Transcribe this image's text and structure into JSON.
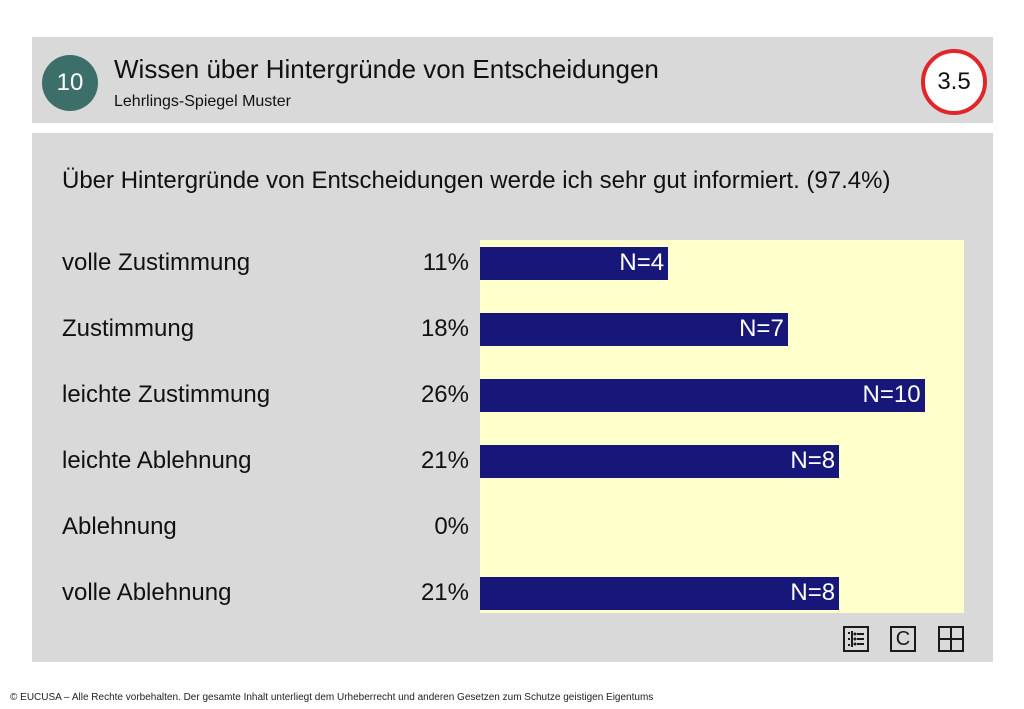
{
  "header": {
    "number": "10",
    "title": "Wissen über Hintergründe von Entscheidungen",
    "subtitle": "Lehrlings-Spiegel Muster",
    "score": "3.5"
  },
  "question": "Über Hintergründe von Entscheidungen werde ich sehr gut informiert. (97.4%)",
  "chart_data": {
    "type": "bar",
    "orientation": "horizontal",
    "categories": [
      "volle Zustimmung",
      "Zustimmung",
      "leichte Zustimmung",
      "leichte Ablehnung",
      "Ablehnung",
      "volle Ablehnung"
    ],
    "percent_labels": [
      "11%",
      "18%",
      "26%",
      "21%",
      "0%",
      "21%"
    ],
    "values": [
      11,
      18,
      26,
      21,
      0,
      21
    ],
    "counts": [
      4,
      7,
      10,
      8,
      0,
      8
    ],
    "count_labels": [
      "N=4",
      "N=7",
      "N=10",
      "N=8",
      "",
      "N=8"
    ],
    "xlim": [
      0,
      29
    ],
    "colors": {
      "bar": "#17177a",
      "plot_background": "#ffffcc",
      "label_outside": "#17177a",
      "label_inside": "#ffffff"
    }
  },
  "toolbar": {
    "icons": [
      "list-icon",
      "c-icon",
      "grid-icon"
    ],
    "c_label": "C"
  },
  "footer": "© EUCUSA – Alle Rechte vorbehalten. Der gesamte Inhalt unterliegt dem Urheberrecht und anderen Gesetzen zum Schutze geistigen Eigentums",
  "colors": {
    "badge": "#3c6e6a",
    "score_ring": "#e0262b",
    "panel": "#d9d9d9"
  }
}
